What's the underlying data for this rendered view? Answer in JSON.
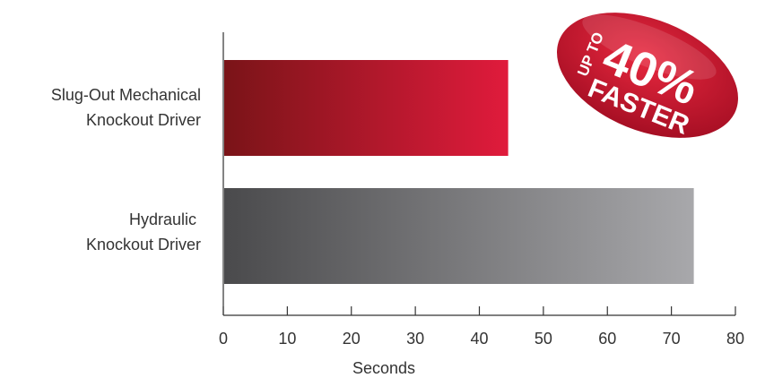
{
  "chart_data": {
    "type": "bar",
    "orientation": "horizontal",
    "categories": [
      [
        "Slug-Out Mechanical",
        "Knockout Driver"
      ],
      [
        "Hydraulic",
        "Knockout Driver"
      ]
    ],
    "values": [
      44.5,
      73.5
    ],
    "xlabel": "Seconds",
    "xlim": [
      0,
      80
    ],
    "xticks": [
      0,
      10,
      20,
      30,
      40,
      50,
      60,
      70,
      80
    ],
    "grid": false,
    "bar_colors": [
      {
        "start": "#7a1418",
        "end": "#e01b3c"
      },
      {
        "start": "#4a4a4c",
        "end": "#a8a8ab"
      }
    ]
  },
  "badge": {
    "line1": "UP TO",
    "line2": "40%",
    "line3": "FASTER",
    "color": "#c8102e"
  }
}
